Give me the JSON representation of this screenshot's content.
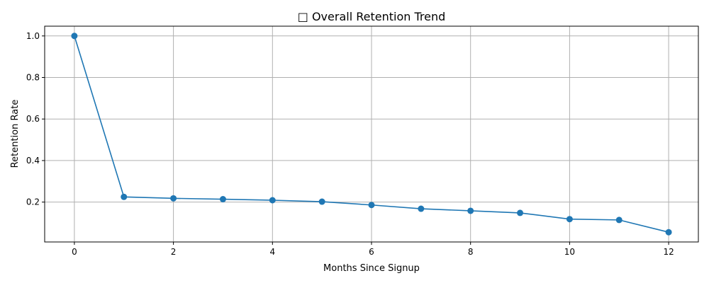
{
  "chart_data": {
    "type": "line",
    "title": "□ Overall Retention Trend",
    "xlabel": "Months Since Signup",
    "ylabel": "Retention Rate",
    "x": [
      0,
      1,
      2,
      3,
      4,
      5,
      6,
      7,
      8,
      9,
      10,
      11,
      12
    ],
    "series": [
      {
        "values": [
          1.0,
          0.225,
          0.218,
          0.214,
          0.209,
          0.202,
          0.186,
          0.168,
          0.158,
          0.148,
          0.118,
          0.114,
          0.055
        ],
        "color": "#1f77b4",
        "marker": "circle"
      }
    ],
    "xlim": [
      -0.6,
      12.6
    ],
    "ylim": [
      0.008,
      1.047
    ],
    "xticks": [
      0,
      2,
      4,
      6,
      8,
      10,
      12
    ],
    "xtick_labels": [
      "0",
      "2",
      "4",
      "6",
      "8",
      "10",
      "12"
    ],
    "yticks": [
      0.2,
      0.4,
      0.6,
      0.8,
      1.0
    ],
    "ytick_labels": [
      "0.2",
      "0.4",
      "0.6",
      "0.8",
      "1.0"
    ],
    "grid": true,
    "legend": "none"
  }
}
